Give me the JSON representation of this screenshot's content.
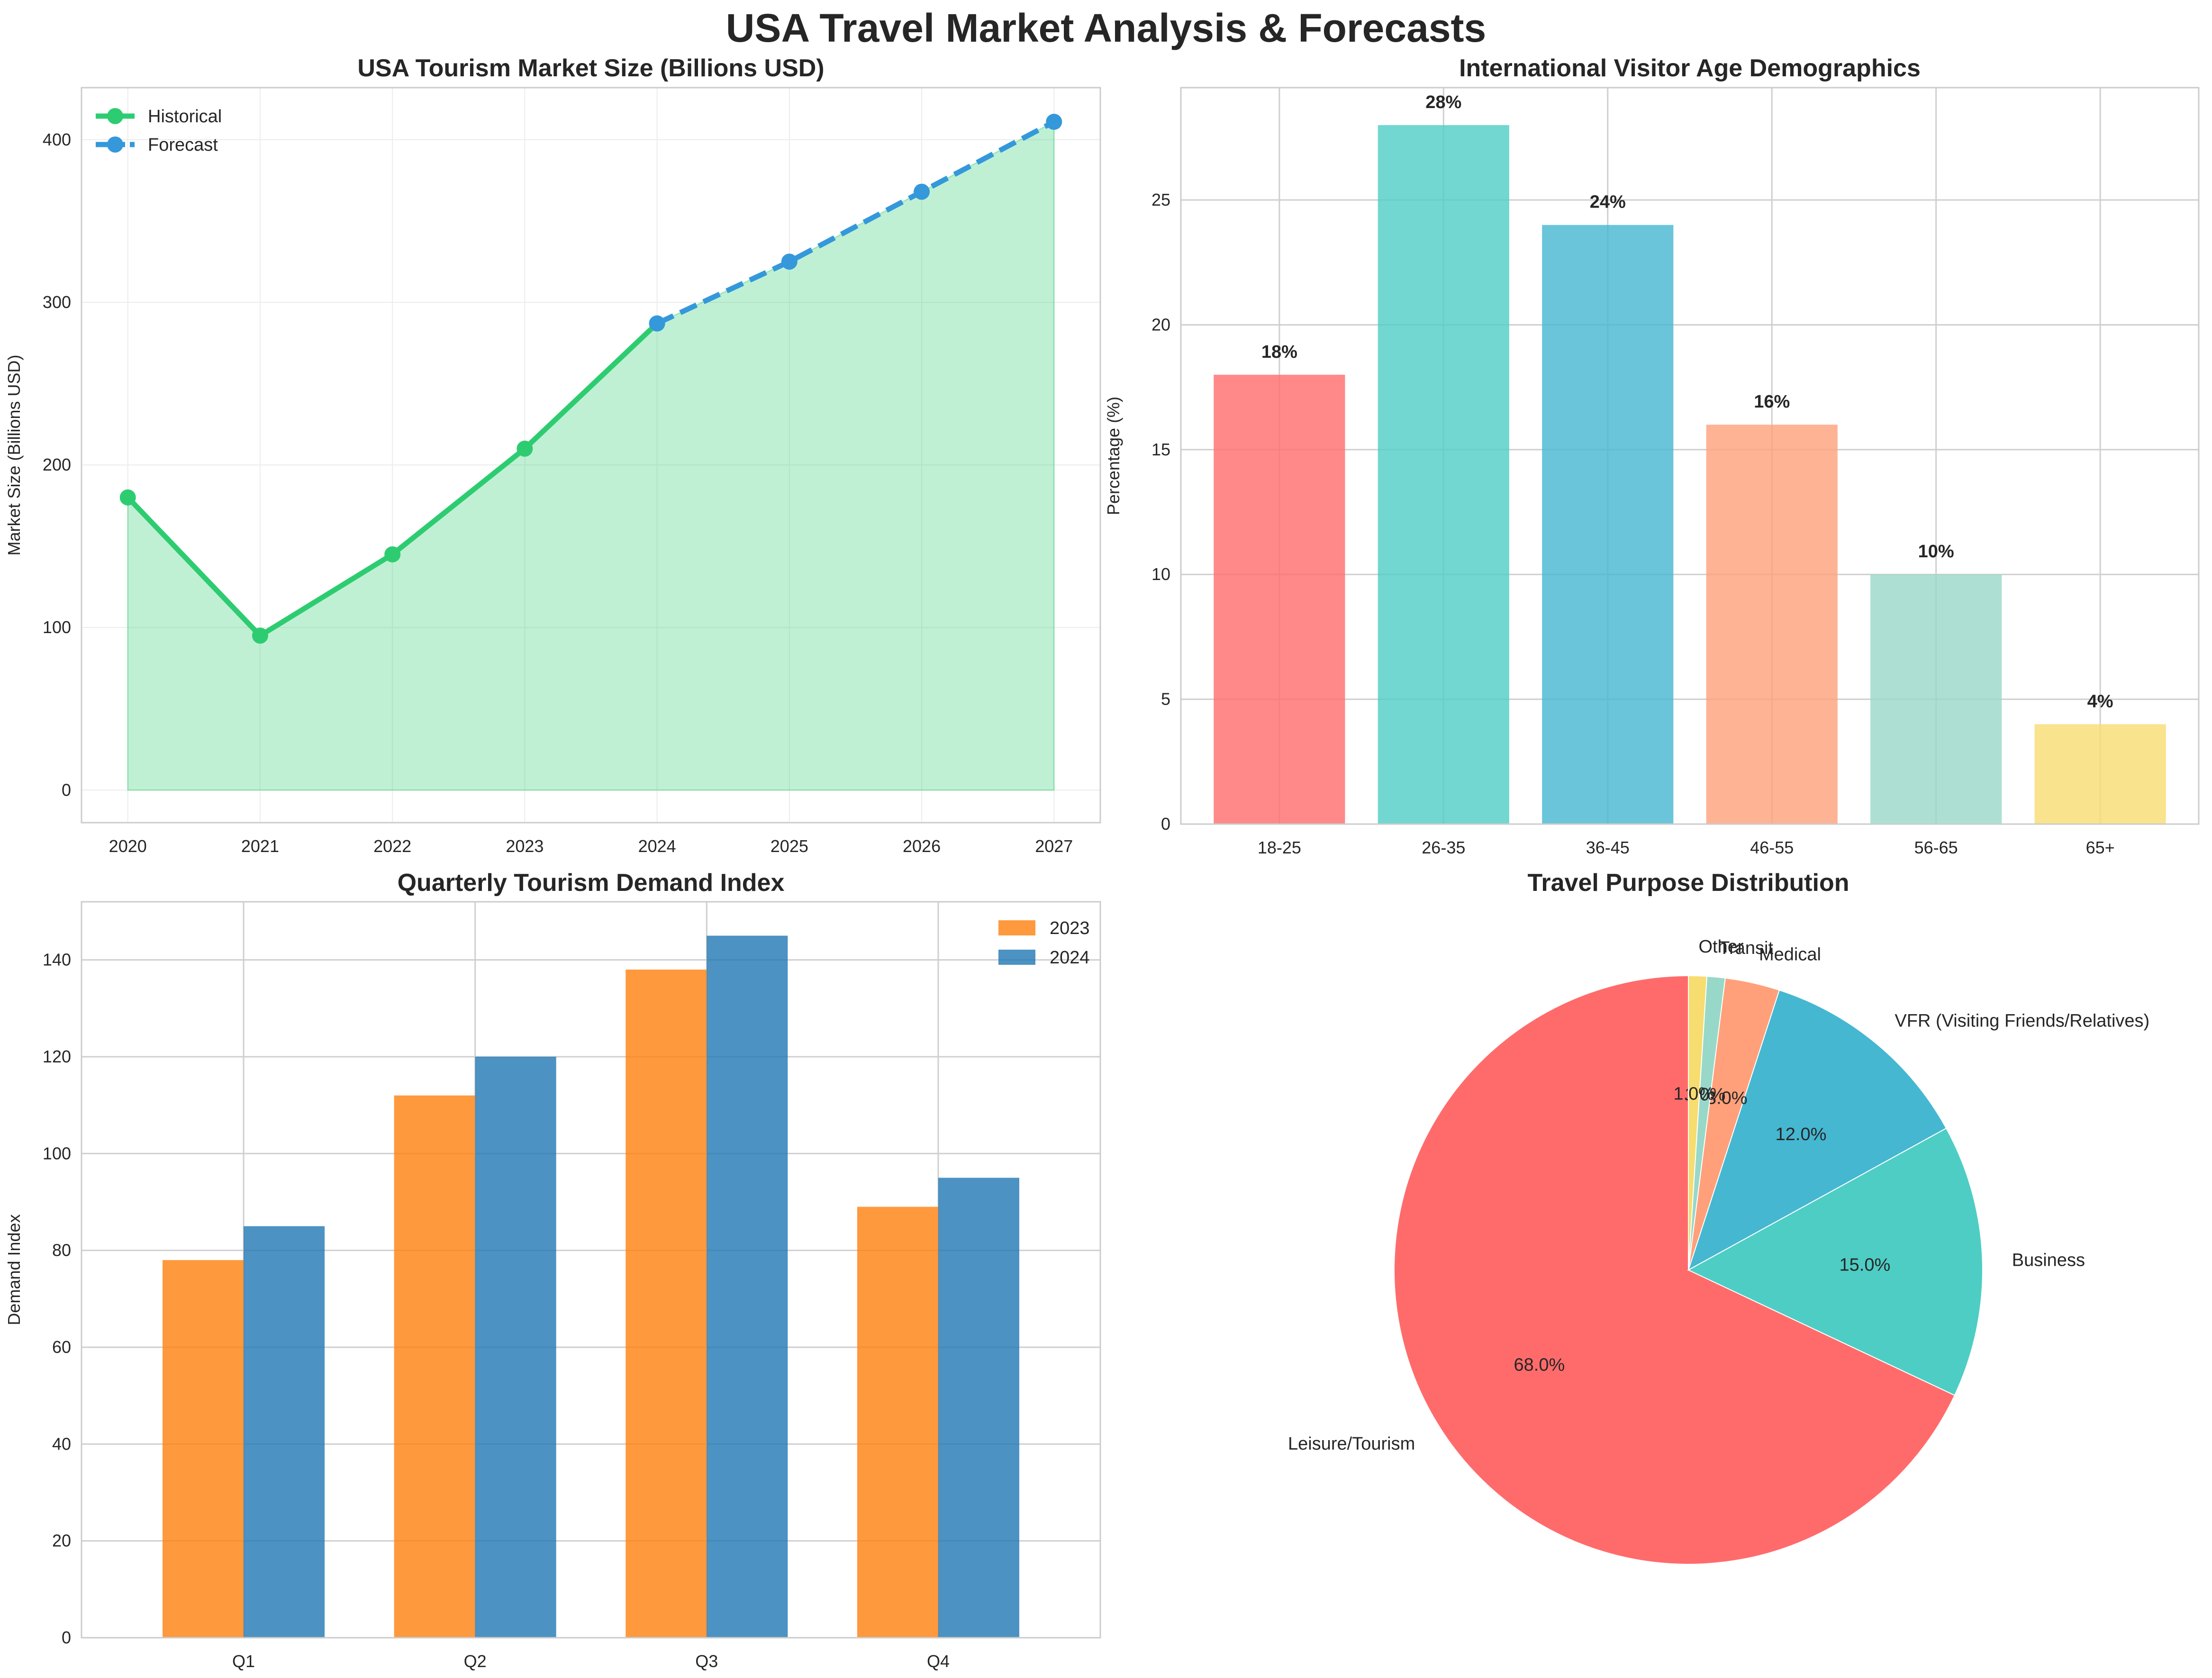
{
  "figure": {
    "title": "USA Travel Market Analysis & Forecasts"
  },
  "chart_data": [
    {
      "id": "market",
      "type": "line",
      "title": "USA Tourism Market Size (Billions USD)",
      "xlabel": "",
      "ylabel": "Market Size (Billions USD)",
      "x": [
        2020,
        2021,
        2022,
        2023,
        2024,
        2025,
        2026,
        2027
      ],
      "xlim": [
        2019.65,
        2027.35
      ],
      "ylim": [
        -20,
        432
      ],
      "yticks": [
        0,
        100,
        200,
        300,
        400
      ],
      "grid": true,
      "legend_position": "top-left",
      "series": [
        {
          "name": "Historical",
          "x": [
            2020,
            2021,
            2022,
            2023,
            2024
          ],
          "values": [
            180,
            95,
            145,
            210,
            287
          ],
          "color": "#2ecc71",
          "style": "solid"
        },
        {
          "name": "Forecast",
          "x": [
            2024,
            2025,
            2026,
            2027
          ],
          "values": [
            287,
            325,
            368,
            411
          ],
          "color": "#3498db",
          "style": "dashed"
        }
      ],
      "fill_color": "#2ecc71"
    },
    {
      "id": "age",
      "type": "bar",
      "title": "International Visitor Age Demographics",
      "xlabel": "",
      "ylabel": "Percentage (%)",
      "categories": [
        "18-25",
        "26-35",
        "36-45",
        "46-55",
        "56-65",
        "65+"
      ],
      "values": [
        18,
        28,
        24,
        16,
        10,
        4
      ],
      "labels": [
        "18%",
        "28%",
        "24%",
        "16%",
        "10%",
        "4%"
      ],
      "colors": [
        "#ff6b6b",
        "#4ecdc4",
        "#45b7d1",
        "#ffa07a",
        "#98d8c8",
        "#f7dc6f"
      ],
      "ylim": [
        0,
        29.5
      ],
      "yticks": [
        0,
        5,
        10,
        15,
        20,
        25
      ],
      "grid": true
    },
    {
      "id": "quarterly",
      "type": "bar",
      "title": "Quarterly Tourism Demand Index",
      "xlabel": "",
      "ylabel": "Demand Index",
      "categories": [
        "Q1",
        "Q2",
        "Q3",
        "Q4"
      ],
      "series": [
        {
          "name": "2023",
          "values": [
            78,
            112,
            138,
            89
          ],
          "color": "#ff7f0e"
        },
        {
          "name": "2024",
          "values": [
            85,
            120,
            145,
            95
          ],
          "color": "#1f77b4"
        }
      ],
      "ylim": [
        0,
        152
      ],
      "yticks": [
        0,
        20,
        40,
        60,
        80,
        100,
        120,
        140
      ],
      "grid": true,
      "legend_position": "top-right"
    },
    {
      "id": "purpose",
      "type": "pie",
      "title": "Travel Purpose Distribution",
      "slices": [
        {
          "label": "Leisure/Tourism",
          "value": 68,
          "pct": "68.0%",
          "color": "#ff6b6b"
        },
        {
          "label": "Business",
          "value": 15,
          "pct": "15.0%",
          "color": "#4ecdc4"
        },
        {
          "label": "VFR (Visiting Friends/Relatives)",
          "value": 12,
          "pct": "12.0%",
          "color": "#45b7d1"
        },
        {
          "label": "Medical",
          "value": 3,
          "pct": "3.0%",
          "color": "#ffa07a"
        },
        {
          "label": "Transit",
          "value": 1,
          "pct": "1.0%",
          "color": "#98d8c8"
        },
        {
          "label": "Other",
          "value": 1,
          "pct": "1.0%",
          "color": "#f7dc6f"
        }
      ]
    }
  ]
}
